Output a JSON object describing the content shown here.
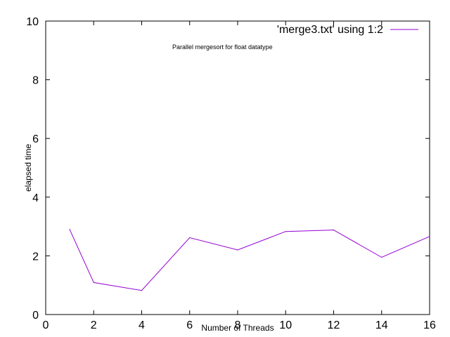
{
  "chart_data": {
    "type": "line",
    "annotation": "Parallel mergesort for float datatype",
    "xlabel": "Number of Threads",
    "ylabel": "elapsed time",
    "xlim": [
      0,
      16
    ],
    "ylim": [
      0,
      10
    ],
    "x_ticks": [
      0,
      2,
      4,
      6,
      8,
      10,
      12,
      14,
      16
    ],
    "y_ticks": [
      0,
      2,
      4,
      6,
      8,
      10
    ],
    "grid": false,
    "legend_position": "top-right",
    "series": [
      {
        "name": "'merge3.txt' using 1:2",
        "color": "#9400D3",
        "x": [
          1,
          2,
          4,
          6,
          8,
          10,
          12,
          14,
          16
        ],
        "y": [
          2.9,
          1.09,
          0.82,
          2.62,
          2.2,
          2.83,
          2.88,
          1.95,
          2.66
        ]
      }
    ]
  }
}
